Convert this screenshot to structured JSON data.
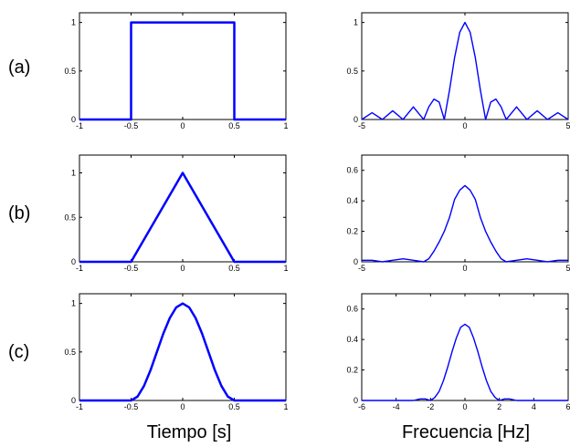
{
  "colors": {
    "series": "#0000ff",
    "axis": "#000000",
    "background": "#ffffff"
  },
  "row_labels": [
    "(a)",
    "(b)",
    "(c)"
  ],
  "column_xlabels": {
    "time": "Tiempo [s]",
    "frequency": "Frecuencia [Hz]"
  },
  "chart_data": [
    {
      "id": "a-time",
      "type": "line",
      "row": 0,
      "col": 0,
      "xlim": [
        -1,
        1
      ],
      "ylim": [
        0,
        1.1
      ],
      "xticks": [
        -1,
        -0.5,
        0,
        0.5,
        1
      ],
      "xtick_labels": [
        "-1",
        "-0.5",
        "0",
        "0.5",
        "1"
      ],
      "yticks": [
        0,
        0.5,
        1
      ],
      "ytick_labels": [
        "0",
        "0.5",
        "1"
      ],
      "series": [
        {
          "x": [
            -1,
            -0.5,
            -0.5,
            0.5,
            0.5,
            1
          ],
          "y": [
            0,
            0,
            1,
            1,
            0,
            0
          ]
        }
      ],
      "grid": false
    },
    {
      "id": "a-freq",
      "type": "line",
      "row": 0,
      "col": 1,
      "xlim": [
        -5,
        5
      ],
      "ylim": [
        0,
        1.1
      ],
      "xticks": [
        -5,
        0,
        5
      ],
      "xtick_labels": [
        "-5",
        "0",
        "5"
      ],
      "yticks": [
        0,
        0.5,
        1
      ],
      "ytick_labels": [
        "0",
        "0.5",
        "1"
      ],
      "series": [
        {
          "x": [
            -5,
            -4.5,
            -4,
            -3.5,
            -3,
            -2.5,
            -2,
            -1.75,
            -1.5,
            -1.25,
            -1,
            -0.75,
            -0.5,
            -0.25,
            0,
            0.25,
            0.5,
            0.75,
            1,
            1.25,
            1.5,
            1.75,
            2,
            2.5,
            3,
            3.5,
            4,
            4.5,
            5
          ],
          "y": [
            0,
            0.07,
            0,
            0.09,
            0,
            0.13,
            0,
            0.13,
            0.21,
            0.18,
            0,
            0.3,
            0.64,
            0.9,
            1,
            0.9,
            0.64,
            0.3,
            0,
            0.18,
            0.21,
            0.13,
            0,
            0.13,
            0,
            0.09,
            0,
            0.07,
            0
          ]
        }
      ],
      "grid": false
    },
    {
      "id": "b-time",
      "type": "line",
      "row": 1,
      "col": 0,
      "xlim": [
        -1,
        1
      ],
      "ylim": [
        0,
        1.2
      ],
      "xticks": [
        -1,
        -0.5,
        0,
        0.5,
        1
      ],
      "xtick_labels": [
        "-1",
        "-0.5",
        "0",
        "0.5",
        "1"
      ],
      "yticks": [
        0,
        0.5,
        1
      ],
      "ytick_labels": [
        "0",
        "0.5",
        "1"
      ],
      "series": [
        {
          "x": [
            -1,
            -0.5,
            0,
            0.5,
            1
          ],
          "y": [
            0,
            0,
            1,
            0,
            0
          ]
        }
      ],
      "grid": false
    },
    {
      "id": "b-freq",
      "type": "line",
      "row": 1,
      "col": 1,
      "xlim": [
        -5,
        5
      ],
      "ylim": [
        0,
        0.7
      ],
      "xticks": [
        -5,
        0,
        5
      ],
      "xtick_labels": [
        "-5",
        "0",
        "5"
      ],
      "yticks": [
        0,
        0.2,
        0.4,
        0.6
      ],
      "ytick_labels": [
        "0",
        "0.2",
        "0.4",
        "0.6"
      ],
      "series": [
        {
          "x": [
            -5,
            -4.5,
            -4,
            -3.5,
            -3,
            -2.5,
            -2,
            -1.75,
            -1.5,
            -1.25,
            -1,
            -0.75,
            -0.5,
            -0.25,
            0,
            0.25,
            0.5,
            0.75,
            1,
            1.25,
            1.5,
            1.75,
            2,
            2.5,
            3,
            3.5,
            4,
            4.5,
            5
          ],
          "y": [
            0.01,
            0.01,
            0,
            0.01,
            0.02,
            0.01,
            0,
            0.02,
            0.07,
            0.13,
            0.2,
            0.29,
            0.41,
            0.47,
            0.5,
            0.47,
            0.41,
            0.29,
            0.2,
            0.13,
            0.07,
            0.02,
            0,
            0.01,
            0.02,
            0.01,
            0,
            0.01,
            0.01
          ]
        }
      ],
      "grid": false
    },
    {
      "id": "c-time",
      "type": "line",
      "row": 2,
      "col": 0,
      "xlim": [
        -1,
        1
      ],
      "ylim": [
        0,
        1.1
      ],
      "xticks": [
        -1,
        -0.5,
        0,
        0.5,
        1
      ],
      "xtick_labels": [
        "-1",
        "-0.5",
        "0",
        "0.5",
        "1"
      ],
      "yticks": [
        0,
        0.5,
        1
      ],
      "ytick_labels": [
        "0",
        "0.5",
        "1"
      ],
      "series": [
        {
          "x": [
            -1,
            -0.5,
            -0.4375,
            -0.375,
            -0.3125,
            -0.25,
            -0.1875,
            -0.125,
            -0.0625,
            0,
            0.0625,
            0.125,
            0.1875,
            0.25,
            0.3125,
            0.375,
            0.4375,
            0.5,
            1
          ],
          "y": [
            0,
            0,
            0.04,
            0.15,
            0.31,
            0.5,
            0.69,
            0.85,
            0.96,
            1,
            0.96,
            0.85,
            0.69,
            0.5,
            0.31,
            0.15,
            0.04,
            0,
            0
          ]
        }
      ],
      "grid": false
    },
    {
      "id": "c-freq",
      "type": "line",
      "row": 2,
      "col": 1,
      "xlim": [
        -6,
        6
      ],
      "ylim": [
        0,
        0.7
      ],
      "xticks": [
        -6,
        -4,
        -2,
        0,
        2,
        4,
        6
      ],
      "xtick_labels": [
        "-6",
        "-4",
        "-2",
        "0",
        "2",
        "4",
        "6"
      ],
      "yticks": [
        0,
        0.2,
        0.4,
        0.6
      ],
      "ytick_labels": [
        "0",
        "0.2",
        "0.4",
        "0.6"
      ],
      "series": [
        {
          "x": [
            -6,
            -4,
            -3,
            -2.6,
            -2.3,
            -2,
            -1.75,
            -1.5,
            -1.25,
            -1,
            -0.75,
            -0.5,
            -0.25,
            0,
            0.25,
            0.5,
            0.75,
            1,
            1.25,
            1.5,
            1.75,
            2,
            2.3,
            2.6,
            3,
            4,
            6
          ],
          "y": [
            0,
            0,
            0,
            0.01,
            0.01,
            0,
            0.02,
            0.06,
            0.13,
            0.22,
            0.32,
            0.41,
            0.48,
            0.5,
            0.48,
            0.41,
            0.32,
            0.22,
            0.13,
            0.06,
            0.02,
            0,
            0.01,
            0.01,
            0,
            0,
            0
          ]
        }
      ],
      "grid": false
    }
  ]
}
